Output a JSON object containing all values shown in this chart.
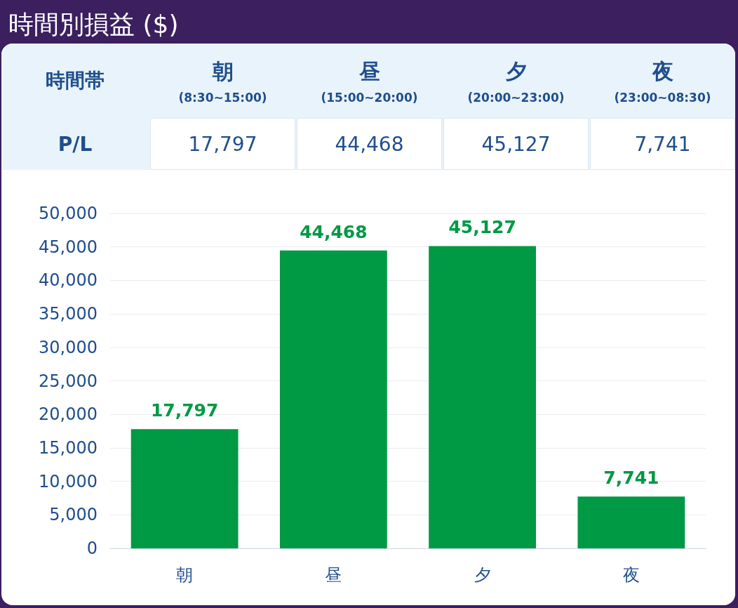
{
  "chart_data": {
    "type": "bar",
    "title": "時間別損益 ($)",
    "categories": [
      "朝",
      "昼",
      "夕",
      "夜"
    ],
    "values": [
      17797,
      44468,
      45127,
      7741
    ],
    "value_labels": [
      "17,797",
      "44,468",
      "45,127",
      "7,741"
    ],
    "color": "#009944",
    "ylim": [
      0,
      50000
    ],
    "yticks": [
      0,
      {
        "value": 5000,
        "label": "5,000"
      },
      {
        "value": 10000,
        "label": "10,000"
      },
      {
        "value": 15000,
        "label": "15,000"
      },
      {
        "value": 20000,
        "label": "20,000"
      },
      {
        "value": 25000,
        "label": "25,000"
      },
      {
        "value": 30000,
        "label": "30,000"
      },
      {
        "value": 35000,
        "label": "35,000"
      },
      {
        "value": 40000,
        "label": "40,000"
      },
      {
        "value": 45000,
        "label": "45,000"
      },
      {
        "value": 50000,
        "label": "50,000"
      }
    ],
    "grid": "y",
    "annotations": [
      "時間帯",
      "(8:30~15:00)",
      "(15:00~20:00)",
      "(20:00~23:00)",
      "(23:00~08:30)",
      "P/L"
    ]
  }
}
